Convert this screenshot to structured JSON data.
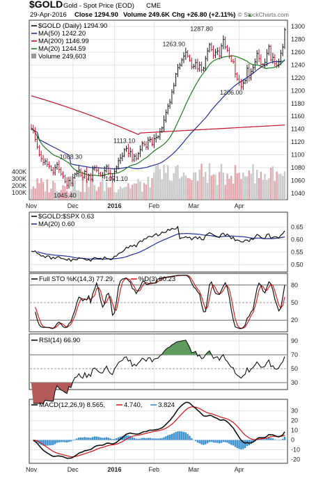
{
  "header": {
    "symbol": "$GOLD",
    "description": "Gold - Spot Price (EOD)",
    "exchange": "CME",
    "date": "29-Apr-2016",
    "close_label": "Close 1294.90",
    "volume_label": "Volume 249.6K",
    "change_label": "Chg +26.80 (+2.11%)",
    "change_arrow": "▲",
    "watermark": "© StockCharts.com"
  },
  "colors": {
    "up": "#111111",
    "down": "#c0102a",
    "ma50": "#1f2f9a",
    "ma200": "#c0102a",
    "ma20": "#1e7a1e",
    "volume_down": "#e3a6ac",
    "volume_up": "#c9c9c9",
    "grid": "#e4e4e4",
    "ratio": "#111111",
    "ratio_ma": "#1f2f9a",
    "sto_k": "#111111",
    "sto_d": "#d32020",
    "rsi": "#111111",
    "macd": "#111111",
    "signal": "#d32020",
    "histogram": "#3a8fd0"
  },
  "chart_data": [
    {
      "type": "candlestick",
      "legend": [
        {
          "label": "$GOLD (Daily) 1294.90",
          "color": "#111111"
        },
        {
          "label": "MA(50) 1242.20",
          "color": "#1f2f9a"
        },
        {
          "label": "MA(200) 1146.99",
          "color": "#c0102a"
        },
        {
          "label": "MA(20) 1244.59",
          "color": "#1e7a1e"
        },
        {
          "label": "Volume 249,603",
          "color": "#888888"
        }
      ],
      "ylim": [
        1030,
        1310
      ],
      "yticks": [
        1040,
        1060,
        1080,
        1100,
        1120,
        1140,
        1160,
        1180,
        1200,
        1220,
        1240,
        1260,
        1280,
        1300
      ],
      "volume_ticks": [
        {
          "value": 100,
          "label": "100K"
        },
        {
          "value": 200,
          "label": "200K"
        },
        {
          "value": 300,
          "label": "300K"
        },
        {
          "value": 400,
          "label": "400K"
        }
      ],
      "volume_max": 760,
      "x_labels": [
        {
          "label": "Nov",
          "index": 0
        },
        {
          "label": "Dec",
          "index": 21
        },
        {
          "label": "2016",
          "index": 42
        },
        {
          "label": "Feb",
          "index": 62
        },
        {
          "label": "Mar",
          "index": 82
        },
        {
          "label": "Apr",
          "index": 105
        }
      ],
      "annotations": [
        {
          "text": "1045.40",
          "index": 17,
          "value": 1045.4,
          "pos": "below"
        },
        {
          "text": "1088.30",
          "index": 20,
          "value": 1088.3,
          "pos": "above"
        },
        {
          "text": "1071.10",
          "index": 43,
          "value": 1071.1,
          "pos": "below"
        },
        {
          "text": "1113.10",
          "index": 47,
          "value": 1113.1,
          "pos": "above"
        },
        {
          "text": "1263.90",
          "index": 72,
          "value": 1263.9,
          "pos": "above"
        },
        {
          "text": "1287.80",
          "index": 86,
          "value": 1287.8,
          "pos": "above"
        },
        {
          "text": "1206.00",
          "index": 101,
          "value": 1206.0,
          "pos": "below"
        }
      ],
      "close": [
        1141,
        1138,
        1124,
        1112,
        1100,
        1094,
        1088,
        1090,
        1085,
        1082,
        1076,
        1072,
        1080,
        1085,
        1077,
        1070,
        1066,
        1058,
        1052,
        1060,
        1056,
        1064,
        1070,
        1071,
        1076,
        1068,
        1065,
        1074,
        1062,
        1068,
        1062,
        1078,
        1080,
        1076,
        1071,
        1068,
        1068,
        1075,
        1082,
        1071,
        1065,
        1062,
        1074,
        1081,
        1091,
        1095,
        1098,
        1108,
        1110,
        1102,
        1105,
        1092,
        1098,
        1094,
        1102,
        1108,
        1118,
        1116,
        1112,
        1123,
        1124,
        1116,
        1125,
        1127,
        1128,
        1136,
        1142,
        1154,
        1166,
        1176,
        1182,
        1198,
        1208,
        1226,
        1236,
        1240,
        1248,
        1254,
        1260,
        1254,
        1247,
        1237,
        1238,
        1244,
        1234,
        1240,
        1232,
        1235,
        1250,
        1262,
        1272,
        1264,
        1255,
        1260,
        1262,
        1254,
        1270,
        1280,
        1268,
        1263,
        1254,
        1246,
        1245,
        1226,
        1218,
        1213,
        1206,
        1212,
        1216,
        1235,
        1220,
        1230,
        1236,
        1245,
        1258,
        1250,
        1241,
        1241,
        1244,
        1258,
        1269,
        1248,
        1252,
        1242,
        1240,
        1245,
        1258,
        1268,
        1295
      ]
    },
    {
      "type": "line",
      "legend": [
        {
          "label": "$GOLD:$SPX 0.63",
          "color": "#111111"
        },
        {
          "label": "MA(20) 0.60",
          "color": "#1f2f9a"
        }
      ],
      "ylim": [
        0.47,
        0.71
      ],
      "yticks": [
        0.5,
        0.55,
        0.6,
        0.65
      ]
    },
    {
      "type": "line",
      "legend": [
        {
          "label": "Full STO %K(14,3) 77.29,",
          "color": "#111111"
        },
        {
          "label": "%D(3) 60.23",
          "color": "#d32020"
        }
      ],
      "ylim": [
        0,
        100
      ],
      "yticks": [
        20,
        50,
        80
      ]
    },
    {
      "type": "line",
      "legend": [
        {
          "label": "RSI(14) 66.90",
          "color": "#111111"
        }
      ],
      "ylim": [
        20,
        100
      ],
      "yticks": [
        30,
        50,
        70,
        90
      ]
    },
    {
      "type": "line",
      "legend": [
        {
          "label": "MACD(12,26,9) 8.565,",
          "color": "#111111"
        },
        {
          "label": "4.740,",
          "color": "#d32020"
        },
        {
          "label": "3.824",
          "color": "#3a8fd0"
        }
      ],
      "ylim": [
        -24,
        42
      ],
      "yticks": [
        -20,
        -10,
        0,
        10,
        20,
        30
      ]
    }
  ]
}
